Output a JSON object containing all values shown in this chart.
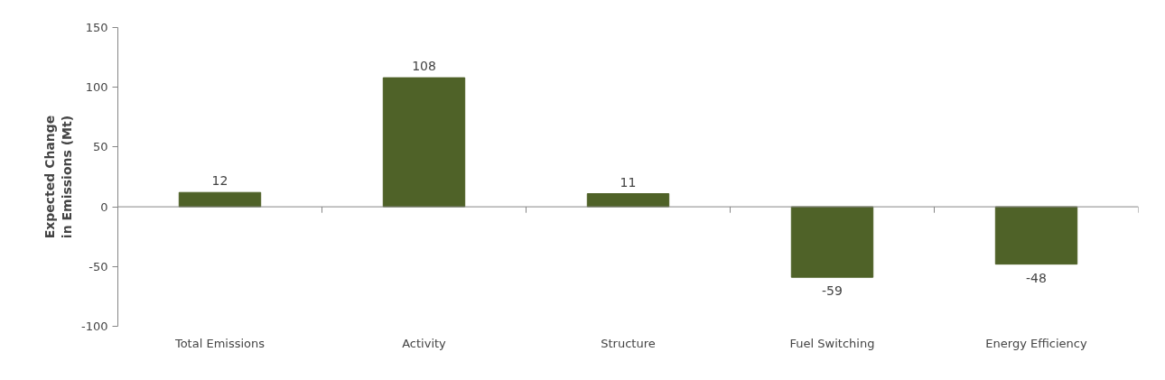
{
  "chart_data": {
    "type": "bar",
    "ylabel": "Expected Change in Emissions (Mt)",
    "categories": [
      "Total Emissions",
      "Activity",
      "Structure",
      "Fuel Switching",
      "Energy Efficiency"
    ],
    "values": [
      12,
      108,
      11,
      -59,
      -48
    ],
    "color": "#4f6228",
    "ylim": [
      -100,
      150
    ],
    "yticks": [
      -100,
      -50,
      0,
      50,
      100,
      150
    ],
    "data_labels": true
  }
}
